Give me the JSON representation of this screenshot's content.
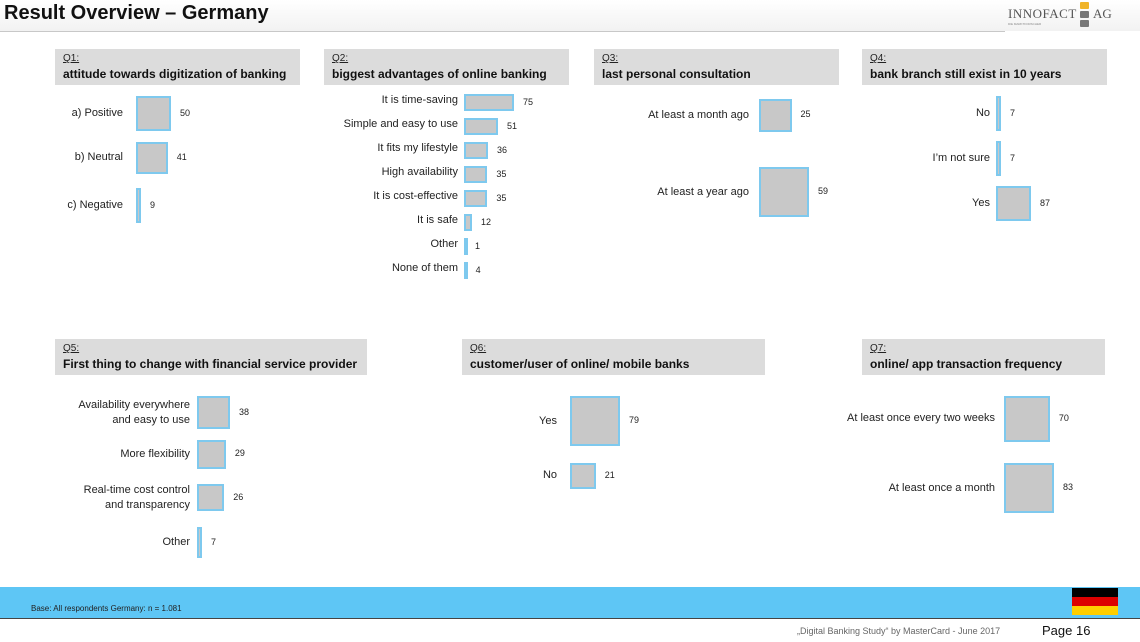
{
  "title": "Result Overview – Germany",
  "logo": {
    "brand": "INNOFACT",
    "suffix": "AG",
    "tagline": "DIE MARKTFORSCHER"
  },
  "colors": {
    "bar_fill": "#c8c8c8",
    "bar_border": "#7ec9ee",
    "header_bg": "#dcdcdc",
    "footer_band": "#5ec6f5"
  },
  "chart_data": [
    {
      "type": "bar",
      "id": "Q1",
      "qnum": "Q1:",
      "title": "attitude towards digitization of banking",
      "categories": [
        "a) Positive",
        "b) Neutral",
        "c) Negative"
      ],
      "values": [
        50,
        41,
        9
      ]
    },
    {
      "type": "bar",
      "id": "Q2",
      "qnum": "Q2:",
      "title": "biggest advantages of online banking",
      "categories": [
        "It is time-saving",
        "Simple and easy to use",
        "It fits my lifestyle",
        "High availability",
        "It is cost-effective",
        "It is safe",
        "Other",
        "None of them"
      ],
      "values": [
        75,
        51,
        36,
        35,
        35,
        12,
        1,
        4
      ]
    },
    {
      "type": "bar",
      "id": "Q3",
      "qnum": "Q3:",
      "title": "last personal consultation",
      "categories": [
        "At least a month ago",
        "At least a year ago"
      ],
      "values": [
        25,
        59
      ]
    },
    {
      "type": "bar",
      "id": "Q4",
      "qnum": "Q4:",
      "title": "bank branch still exist in 10 years",
      "categories": [
        "No",
        "I’m not sure",
        "Yes"
      ],
      "values": [
        7,
        7,
        87
      ]
    },
    {
      "type": "bar",
      "id": "Q5",
      "qnum": "Q5:",
      "title": "First thing to change with financial service provider",
      "categories": [
        "Availability everywhere and easy to use",
        "More flexibility",
        "Real-time cost control and transparency",
        "Other"
      ],
      "values": [
        38,
        29,
        26,
        7
      ]
    },
    {
      "type": "bar",
      "id": "Q6",
      "qnum": "Q6:",
      "title": "customer/user of online/ mobile banks",
      "categories": [
        "Yes",
        "No"
      ],
      "values": [
        79,
        21
      ]
    },
    {
      "type": "bar",
      "id": "Q7",
      "qnum": "Q7:",
      "title": "online/ app transaction frequency",
      "categories": [
        "At least once every two weeks",
        "At least once a month"
      ],
      "values": [
        70,
        83
      ]
    }
  ],
  "footer": {
    "base": "Base: All respondents Germany: n = 1.081",
    "study": "„Digital Banking Study“ by MasterCard - June 2017",
    "page": "Page 16"
  },
  "flag_colors": [
    "#000000",
    "#dd0000",
    "#ffce00"
  ]
}
